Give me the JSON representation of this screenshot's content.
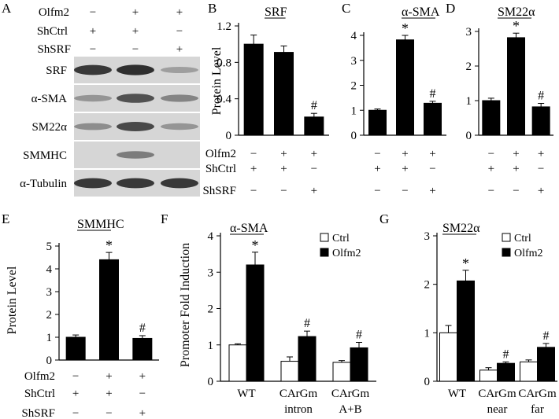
{
  "blot": {
    "panel_letter": "A",
    "conditions": [
      {
        "label": "Olfm2",
        "signs": [
          "−",
          "+",
          "+"
        ]
      },
      {
        "label": "ShCtrl",
        "signs": [
          "+",
          "+",
          "−"
        ]
      },
      {
        "label": "ShSRF",
        "signs": [
          "−",
          "−",
          "+"
        ]
      }
    ],
    "rows": [
      {
        "label": "SRF",
        "intensity": [
          0.85,
          0.9,
          0.25
        ]
      },
      {
        "label": "α-SMA",
        "intensity": [
          0.3,
          0.7,
          0.4
        ]
      },
      {
        "label": "SM22α",
        "intensity": [
          0.35,
          0.75,
          0.3
        ]
      },
      {
        "label": "SMMHC",
        "intensity": [
          0.0,
          0.45,
          0.0
        ]
      },
      {
        "label": "α-Tubulin",
        "intensity": [
          0.85,
          0.85,
          0.85
        ]
      }
    ]
  },
  "chart_data": [
    {
      "panel_letter": "B",
      "type": "bar",
      "title": "SRF",
      "ylabel": "Protein Level",
      "categories": [
        "1",
        "2",
        "3"
      ],
      "values": [
        1.0,
        0.91,
        0.2
      ],
      "errors": [
        0.1,
        0.07,
        0.04
      ],
      "marks": [
        "",
        "",
        "#"
      ],
      "ylim": [
        0,
        1.2
      ],
      "yticks": [
        "0",
        "0.4",
        "0.8",
        "1.2"
      ],
      "ytick_values": [
        0,
        0.4,
        0.8,
        1.2
      ],
      "conditions": [
        {
          "label": "Olfm2",
          "signs": [
            "−",
            "+",
            "+"
          ]
        },
        {
          "label": "ShCtrl",
          "signs": [
            "+",
            "+",
            "−"
          ]
        },
        {
          "label": "ShSRF",
          "signs": [
            "−",
            "−",
            "+"
          ]
        }
      ]
    },
    {
      "panel_letter": "C",
      "type": "bar",
      "title": "α-SMA",
      "ylabel": "",
      "categories": [
        "1",
        "2",
        "3"
      ],
      "values": [
        1.0,
        3.82,
        1.28
      ],
      "errors": [
        0.05,
        0.18,
        0.08
      ],
      "marks": [
        "",
        "*",
        "#"
      ],
      "ylim": [
        0,
        4
      ],
      "yticks": [
        "0",
        "1",
        "2",
        "3",
        "4"
      ],
      "ytick_values": [
        0,
        1,
        2,
        3,
        4
      ],
      "conditions": [
        {
          "label": "",
          "signs": [
            "−",
            "+",
            "+"
          ]
        },
        {
          "label": "",
          "signs": [
            "+",
            "+",
            "−"
          ]
        },
        {
          "label": "",
          "signs": [
            "−",
            "−",
            "+"
          ]
        }
      ]
    },
    {
      "panel_letter": "D",
      "type": "bar",
      "title": "SM22α",
      "ylabel": "",
      "categories": [
        "1",
        "2",
        "3"
      ],
      "values": [
        1.0,
        2.82,
        0.82
      ],
      "errors": [
        0.07,
        0.13,
        0.1
      ],
      "marks": [
        "",
        "*",
        "#"
      ],
      "ylim": [
        0,
        3
      ],
      "yticks": [
        "0",
        "1",
        "2",
        "3"
      ],
      "ytick_values": [
        0,
        1,
        2,
        3
      ],
      "conditions": [
        {
          "label": "",
          "signs": [
            "−",
            "+",
            "+"
          ]
        },
        {
          "label": "",
          "signs": [
            "+",
            "+",
            "−"
          ]
        },
        {
          "label": "",
          "signs": [
            "−",
            "−",
            "+"
          ]
        }
      ]
    },
    {
      "panel_letter": "E",
      "type": "bar",
      "title": "SMMHC",
      "ylabel": "Protein Level",
      "categories": [
        "1",
        "2",
        "3"
      ],
      "values": [
        1.0,
        4.4,
        0.95
      ],
      "errors": [
        0.1,
        0.32,
        0.12
      ],
      "marks": [
        "",
        "*",
        "#"
      ],
      "ylim": [
        0,
        5
      ],
      "yticks": [
        "0",
        "1",
        "2",
        "3",
        "4",
        "5"
      ],
      "ytick_values": [
        0,
        1,
        2,
        3,
        4,
        5
      ],
      "conditions": [
        {
          "label": "Olfm2",
          "signs": [
            "−",
            "+",
            "+"
          ]
        },
        {
          "label": "ShCtrl",
          "signs": [
            "+",
            "+",
            "−"
          ]
        },
        {
          "label": "ShSRF",
          "signs": [
            "−",
            "−",
            "+"
          ]
        }
      ]
    },
    {
      "panel_letter": "F",
      "type": "bar",
      "title": "α-SMA",
      "ylabel": "Promoter Fold Induction",
      "categories": [
        "WT",
        "CArGm\nintron",
        "CArGm\nA+B"
      ],
      "series": [
        {
          "name": "Ctrl",
          "values": [
            1.0,
            0.55,
            0.52
          ],
          "errors": [
            0.03,
            0.12,
            0.05
          ],
          "marks": [
            "",
            "",
            ""
          ]
        },
        {
          "name": "Olfm2",
          "values": [
            3.2,
            1.23,
            0.92
          ],
          "errors": [
            0.35,
            0.15,
            0.15
          ],
          "marks": [
            "*",
            "#",
            "#"
          ]
        }
      ],
      "ylim": [
        0,
        4
      ],
      "yticks": [
        "0",
        "1",
        "2",
        "3",
        "4"
      ],
      "ytick_values": [
        0,
        1,
        2,
        3,
        4
      ]
    },
    {
      "panel_letter": "G",
      "type": "bar",
      "title": "SM22α",
      "ylabel": "",
      "categories": [
        "WT",
        "CArGm\nnear",
        "CArGm\nfar"
      ],
      "series": [
        {
          "name": "Ctrl",
          "values": [
            1.0,
            0.23,
            0.4
          ],
          "errors": [
            0.15,
            0.05,
            0.04
          ],
          "marks": [
            "",
            "",
            ""
          ]
        },
        {
          "name": "Olfm2",
          "values": [
            2.07,
            0.37,
            0.7
          ],
          "errors": [
            0.22,
            0.03,
            0.08
          ],
          "marks": [
            "*",
            "#",
            "#"
          ]
        }
      ],
      "ylim": [
        0,
        3
      ],
      "yticks": [
        "0",
        "1",
        "2",
        "3"
      ],
      "ytick_values": [
        0,
        1,
        2,
        3
      ]
    }
  ]
}
